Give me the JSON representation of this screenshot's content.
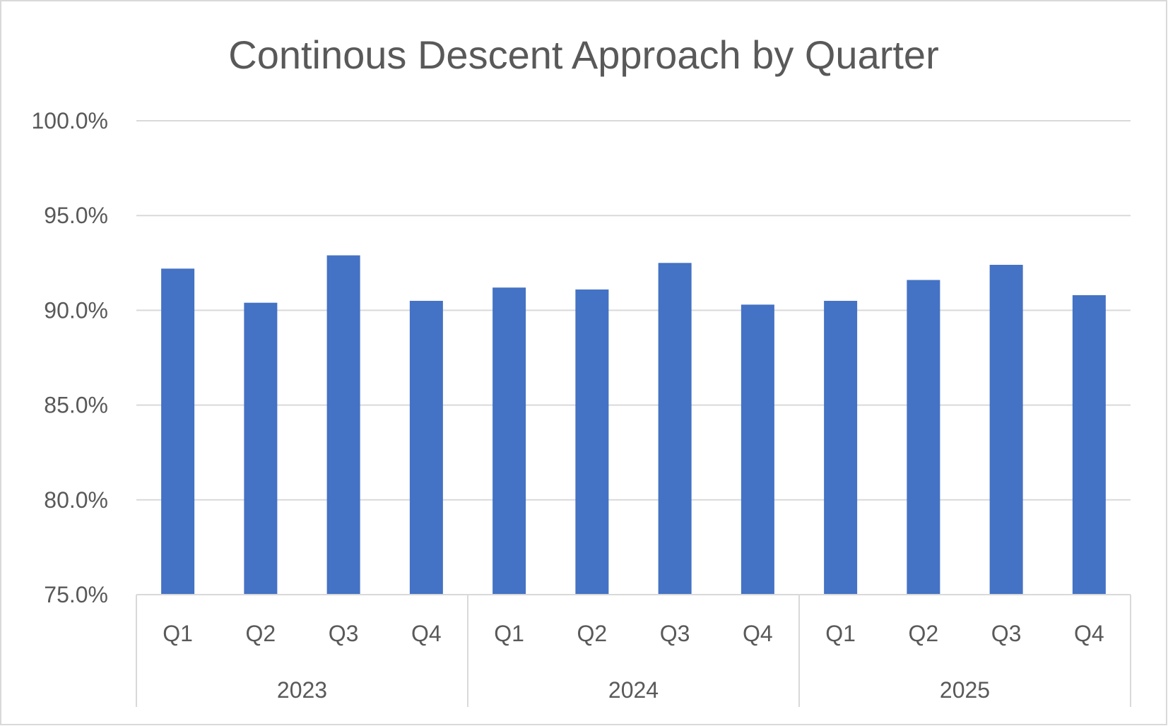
{
  "chart_data": {
    "type": "bar",
    "title": "Continous Descent Approach by Quarter",
    "xlabel": "",
    "ylabel": "",
    "ylim": [
      75,
      100
    ],
    "yticks": [
      "100.0%",
      "95.0%",
      "90.0%",
      "85.0%",
      "80.0%",
      "75.0%"
    ],
    "ytick_values": [
      100,
      95,
      90,
      85,
      80,
      75
    ],
    "grid": true,
    "groups": [
      {
        "label": "2023",
        "categories": [
          "Q1",
          "Q2",
          "Q3",
          "Q4"
        ]
      },
      {
        "label": "2024",
        "categories": [
          "Q1",
          "Q2",
          "Q3",
          "Q4"
        ]
      },
      {
        "label": "2025",
        "categories": [
          "Q1",
          "Q2",
          "Q3",
          "Q4"
        ]
      }
    ],
    "values": [
      92.2,
      90.4,
      92.9,
      90.5,
      91.2,
      91.1,
      92.5,
      90.3,
      90.5,
      91.6,
      92.4,
      90.8
    ],
    "unit": "%",
    "bar_color": "#4472C4",
    "grid_color": "#D9D9D9",
    "text_color": "#595959"
  }
}
